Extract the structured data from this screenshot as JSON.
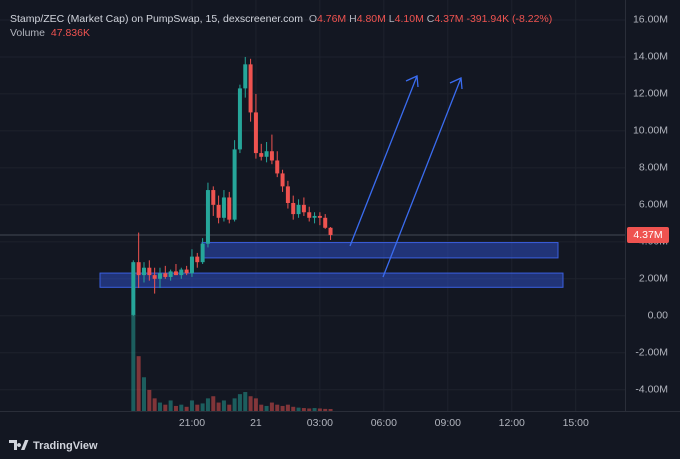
{
  "chart_data": {
    "type": "candlestick",
    "legend": {
      "title": "Stamp/ZEC (Market Cap) on PumpSwap, 15, dexscreener.com",
      "ohlc": [
        {
          "key": "O",
          "value": "4.76M"
        },
        {
          "key": "H",
          "value": "4.80M"
        },
        {
          "key": "L",
          "value": "4.10M"
        },
        {
          "key": "C",
          "value": "4.37M"
        }
      ],
      "change": "-391.94K (-8.22%)",
      "volume_label": "Volume",
      "volume_value": "47.836K"
    },
    "brand": "TradingView",
    "up_color": "#26a69a",
    "down_color": "#ef5350",
    "zone_color": "#2e4dbf",
    "grid": true,
    "ylim": [
      -5.15,
      17.08
    ],
    "yticks": [
      {
        "value": 16,
        "label": "16.00M"
      },
      {
        "value": 14,
        "label": "14.00M"
      },
      {
        "value": 12,
        "label": "12.00M"
      },
      {
        "value": 10,
        "label": "10.00M"
      },
      {
        "value": 8,
        "label": "8.00M"
      },
      {
        "value": 6,
        "label": "6.00M"
      },
      {
        "value": 4,
        "label": "4.00M"
      },
      {
        "value": 2,
        "label": "2.00M"
      },
      {
        "value": 0,
        "label": "0.00"
      },
      {
        "value": -2,
        "label": "-2.00M"
      },
      {
        "value": -4,
        "label": "-4.00M"
      }
    ],
    "zones": [
      [
        3.13,
        3.96
      ],
      [
        1.54,
        2.31
      ]
    ],
    "categories": [
      null,
      null,
      null,
      null,
      null,
      null,
      null,
      null,
      null,
      null,
      null,
      null,
      "21:00",
      null,
      null,
      null,
      null,
      null,
      null,
      null,
      null,
      null,
      null,
      null,
      "21",
      null,
      null,
      null,
      null,
      null,
      null,
      null,
      null,
      null,
      null,
      null,
      "03:00",
      null,
      null,
      null,
      null,
      null,
      null,
      null,
      null,
      null,
      null,
      null,
      "06:00",
      null,
      null,
      null,
      null,
      null,
      null,
      null,
      null,
      null,
      null,
      null,
      "09:00",
      null,
      null,
      null,
      null,
      null,
      null,
      null,
      null,
      null,
      null,
      null,
      "12:00",
      null,
      null,
      null,
      null,
      null,
      null,
      null,
      null,
      null,
      null,
      null,
      "15:00",
      null
    ],
    "open": [
      null,
      0.05,
      2.9,
      2.2,
      2.6,
      2.2,
      2.0,
      2.3,
      2.1,
      2.4,
      2.2,
      2.5,
      2.3,
      3.2,
      2.9,
      3.9,
      6.8,
      6.0,
      5.3,
      6.4,
      5.2,
      9.0,
      12.3,
      13.6,
      11.0,
      8.8,
      8.6,
      8.9,
      8.4,
      7.7,
      7.0,
      6.1,
      5.5,
      6.0,
      5.6,
      5.3,
      5.4,
      5.3,
      4.76,
      null,
      null,
      null,
      null,
      null,
      null,
      null,
      null,
      null,
      null,
      null,
      null,
      null,
      null,
      null,
      null,
      null,
      null,
      null,
      null,
      null,
      null,
      null,
      null,
      null,
      null,
      null,
      null,
      null,
      null,
      null,
      null,
      null,
      null,
      null,
      null,
      null,
      null,
      null,
      null,
      null,
      null,
      null,
      null,
      null,
      null,
      null
    ],
    "high": [
      null,
      3.0,
      4.5,
      2.9,
      3.0,
      2.6,
      2.6,
      2.7,
      2.5,
      2.8,
      2.6,
      2.7,
      3.6,
      3.4,
      4.2,
      7.2,
      7.0,
      6.5,
      6.8,
      6.7,
      9.5,
      12.5,
      14.0,
      13.9,
      12.0,
      9.3,
      9.4,
      9.8,
      8.9,
      7.9,
      7.3,
      6.5,
      6.3,
      6.4,
      5.9,
      5.6,
      5.6,
      5.5,
      4.8,
      null,
      null,
      null,
      null,
      null,
      null,
      null,
      null,
      null,
      null,
      null,
      null,
      null,
      null,
      null,
      null,
      null,
      null,
      null,
      null,
      null,
      null,
      null,
      null,
      null,
      null,
      null,
      null,
      null,
      null,
      null,
      null,
      null,
      null,
      null,
      null,
      null,
      null,
      null,
      null,
      null,
      null,
      null,
      null,
      null,
      null,
      null
    ],
    "low": [
      null,
      0.0,
      1.5,
      1.8,
      1.9,
      1.2,
      1.5,
      2.0,
      1.9,
      2.2,
      2.0,
      2.2,
      2.1,
      2.6,
      2.8,
      3.7,
      5.4,
      5.0,
      5.1,
      5.0,
      5.1,
      8.8,
      11.8,
      10.5,
      8.5,
      8.4,
      8.3,
      8.2,
      7.5,
      6.7,
      5.8,
      5.2,
      5.3,
      5.4,
      5.1,
      5.0,
      4.9,
      4.7,
      4.1,
      null,
      null,
      null,
      null,
      null,
      null,
      null,
      null,
      null,
      null,
      null,
      null,
      null,
      null,
      null,
      null,
      null,
      null,
      null,
      null,
      null,
      null,
      null,
      null,
      null,
      null,
      null,
      null,
      null,
      null,
      null,
      null,
      null,
      null,
      null,
      null,
      null,
      null,
      null,
      null,
      null,
      null,
      null,
      null,
      null,
      null,
      null
    ],
    "close": [
      null,
      2.9,
      2.2,
      2.6,
      2.2,
      2.0,
      2.3,
      2.1,
      2.4,
      2.2,
      2.5,
      2.3,
      3.2,
      2.9,
      3.9,
      6.8,
      6.0,
      5.3,
      6.4,
      5.2,
      9.0,
      12.3,
      13.6,
      11.0,
      8.8,
      8.6,
      8.9,
      8.4,
      7.7,
      7.0,
      6.1,
      5.5,
      6.0,
      5.6,
      5.3,
      5.4,
      5.3,
      4.76,
      4.37,
      null,
      null,
      null,
      null,
      null,
      null,
      null,
      null,
      null,
      null,
      null,
      null,
      null,
      null,
      null,
      null,
      null,
      null,
      null,
      null,
      null,
      null,
      null,
      null,
      null,
      null,
      null,
      null,
      null,
      null,
      null,
      null,
      null,
      null,
      null,
      null,
      null,
      null,
      null,
      null,
      null,
      null,
      null,
      null,
      null,
      null,
      null
    ],
    "volume": [
      null,
      2300,
      1300,
      800,
      500,
      300,
      200,
      150,
      250,
      120,
      150,
      100,
      250,
      150,
      180,
      300,
      350,
      200,
      250,
      150,
      300,
      400,
      450,
      350,
      300,
      150,
      120,
      200,
      150,
      120,
      150,
      100,
      80,
      70,
      60,
      70,
      60,
      50,
      47.836,
      null,
      null,
      null,
      null,
      null,
      null,
      null,
      null,
      null,
      null,
      null,
      null,
      null,
      null,
      null,
      null,
      null,
      null,
      null,
      null,
      null,
      null,
      null,
      null,
      null,
      null,
      null,
      null,
      null,
      null,
      null,
      null,
      null,
      null,
      null,
      null,
      null,
      null,
      null,
      null,
      null,
      null,
      null,
      null,
      null,
      null,
      null
    ]
  }
}
